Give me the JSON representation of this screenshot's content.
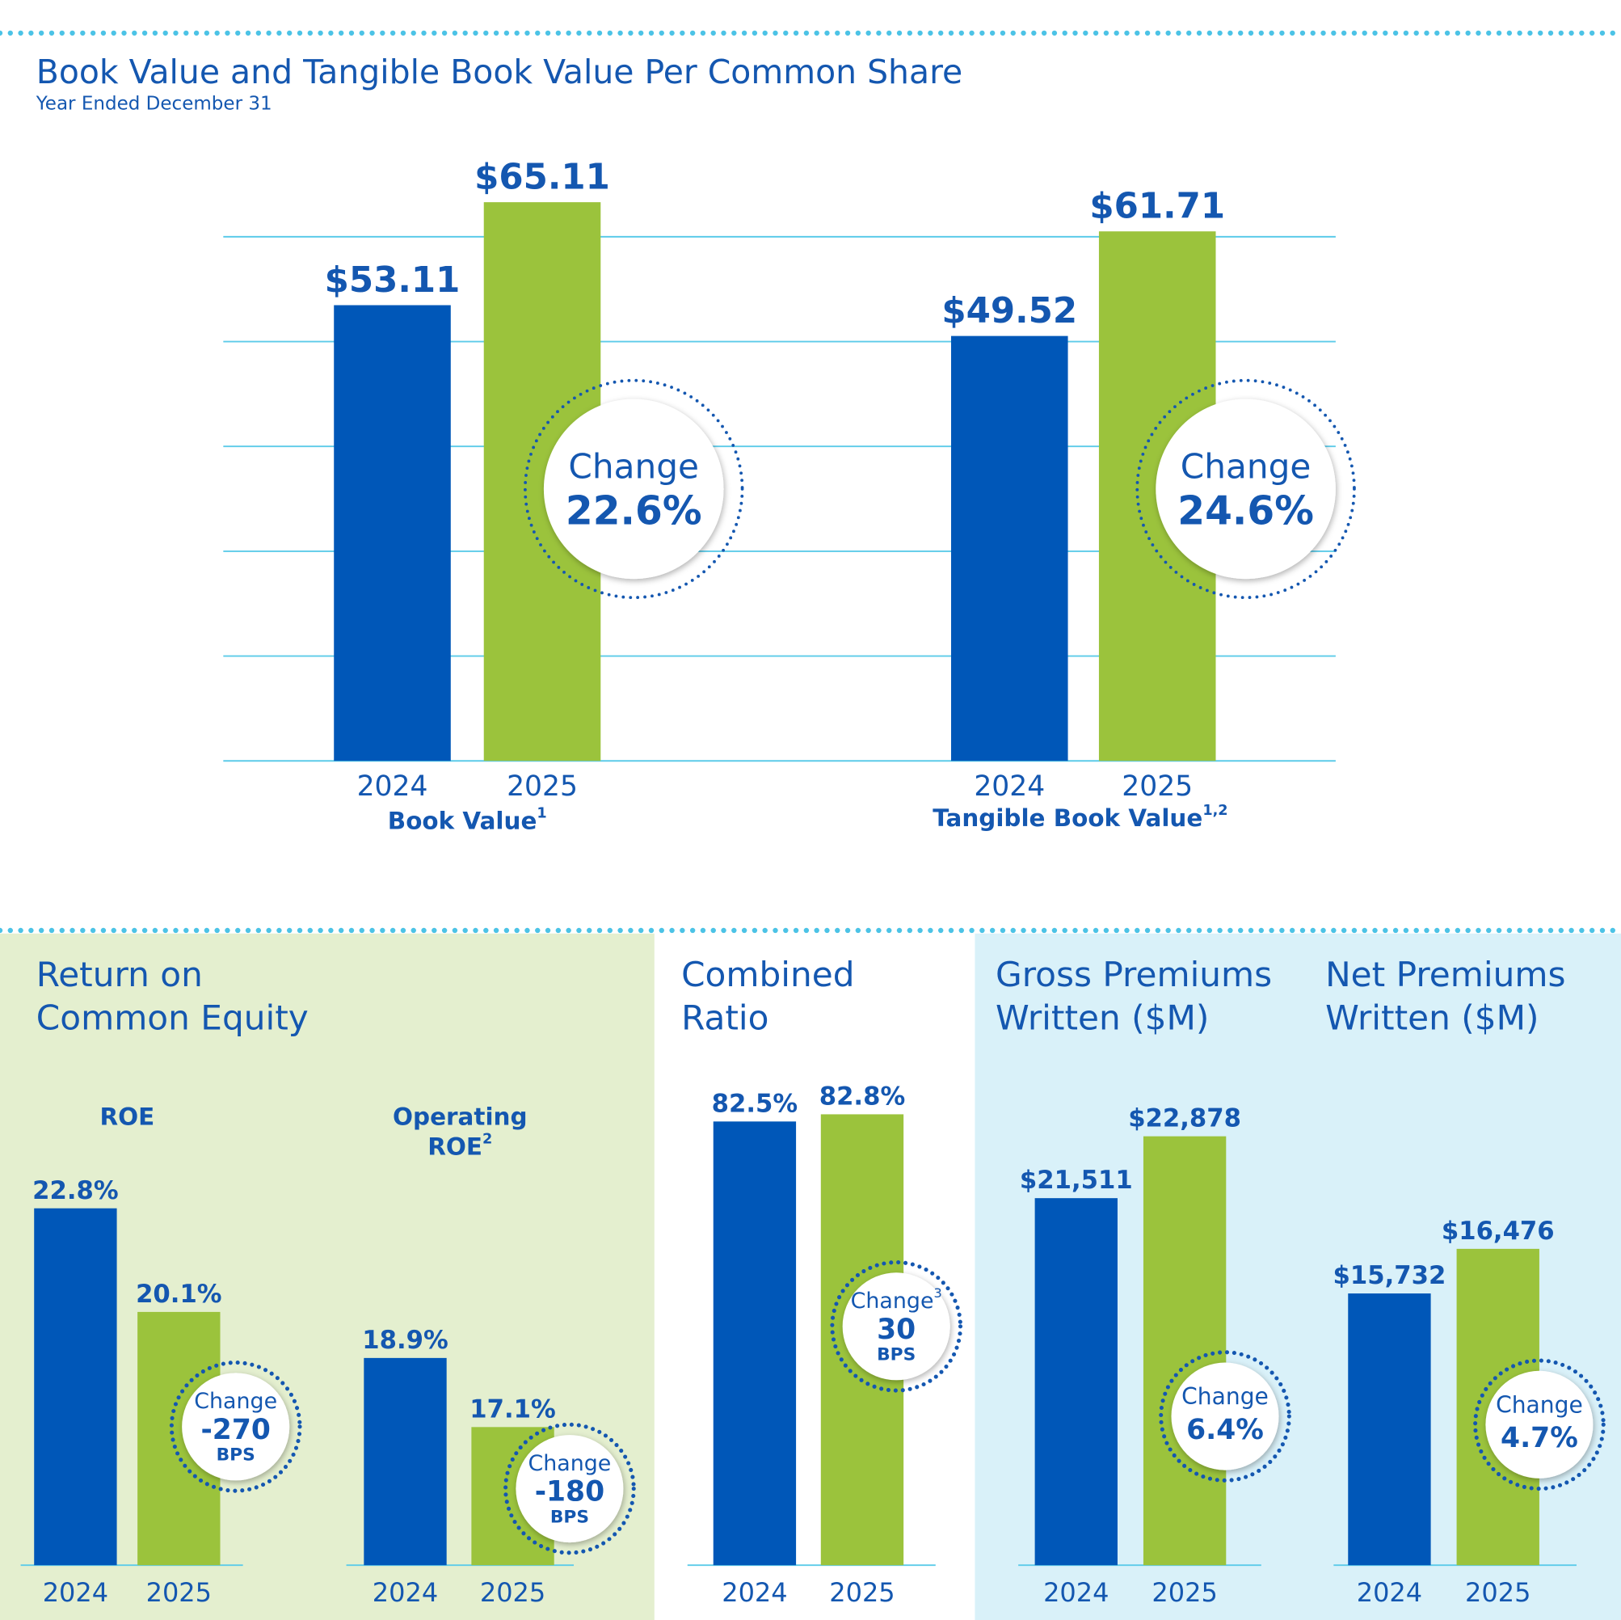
{
  "title": "Book Value and Tangible Book Value Per Common Share",
  "subtitle": "Year Ended December 31",
  "sections": [
    {
      "title": [
        "Return on",
        "Common Equity"
      ]
    },
    {
      "title": [
        "Combined",
        "Ratio"
      ]
    },
    {
      "title": [
        "Gross Premiums",
        "Written ($M)"
      ]
    },
    {
      "title": [
        "Net Premiums",
        "Written ($M)"
      ]
    }
  ],
  "chart_data": [
    {
      "type": "bar",
      "xlabel": "Book Value",
      "xlabel_note": "1",
      "categories": [
        "2024",
        "2025"
      ],
      "values": [
        53.11,
        65.11
      ],
      "value_labels": [
        "$53.11",
        "$65.11"
      ],
      "colors": [
        "#0057b8",
        "#9bc33c"
      ],
      "ylim": [
        0,
        70
      ],
      "annotation": [
        "Change",
        "22.6%"
      ]
    },
    {
      "type": "bar",
      "xlabel": "Tangible Book Value",
      "xlabel_note": "1,2",
      "categories": [
        "2024",
        "2025"
      ],
      "values": [
        49.52,
        61.71
      ],
      "value_labels": [
        "$49.52",
        "$61.71"
      ],
      "colors": [
        "#0057b8",
        "#9bc33c"
      ],
      "ylim": [
        0,
        70
      ],
      "annotation": [
        "Change",
        "24.6%"
      ]
    },
    {
      "type": "bar",
      "title": [
        "ROE"
      ],
      "categories": [
        "2024",
        "2025"
      ],
      "values": [
        22.8,
        20.1
      ],
      "value_labels": [
        "22.8%",
        "20.1%"
      ],
      "colors": [
        "#0057b8",
        "#9bc33c"
      ],
      "ylim": [
        13.5,
        26
      ],
      "annotation": [
        "Change",
        "-270",
        "BPS"
      ]
    },
    {
      "type": "bar",
      "title": [
        "Operating",
        "ROE"
      ],
      "title_note": "2",
      "categories": [
        "2024",
        "2025"
      ],
      "values": [
        18.9,
        17.1
      ],
      "value_labels": [
        "18.9%",
        "17.1%"
      ],
      "colors": [
        "#0057b8",
        "#9bc33c"
      ],
      "ylim": [
        13.5,
        26
      ],
      "annotation": [
        "Change",
        "-180",
        "BPS"
      ]
    },
    {
      "type": "bar",
      "categories": [
        "2024",
        "2025"
      ],
      "values": [
        82.5,
        82.8
      ],
      "value_labels": [
        "82.5%",
        "82.8%"
      ],
      "colors": [
        "#0057b8",
        "#9bc33c"
      ],
      "ylim": [
        64,
        84
      ],
      "annotation": [
        "Change",
        "30",
        "BPS"
      ],
      "annotation_note": "3"
    },
    {
      "type": "bar",
      "categories": [
        "2024",
        "2025"
      ],
      "values": [
        21511,
        22878
      ],
      "value_labels": [
        "$21,511",
        "$22,878"
      ],
      "colors": [
        "#0057b8",
        "#9bc33c"
      ],
      "ylim": [
        13400,
        24000
      ],
      "annotation": [
        "Change",
        "6.4%"
      ]
    },
    {
      "type": "bar",
      "categories": [
        "2024",
        "2025"
      ],
      "values": [
        15732,
        16476
      ],
      "value_labels": [
        "$15,732",
        "$16,476"
      ],
      "colors": [
        "#0057b8",
        "#9bc33c"
      ],
      "ylim": [
        11200,
        19200
      ],
      "annotation": [
        "Change",
        "4.7%"
      ]
    }
  ]
}
